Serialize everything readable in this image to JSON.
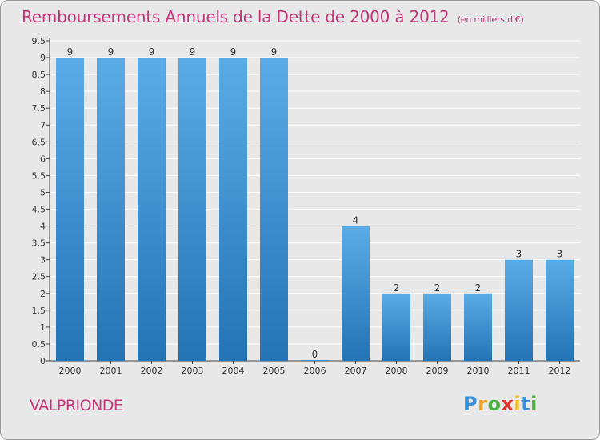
{
  "chart_data": {
    "type": "bar",
    "title": "Remboursements Annuels de la Dette de 2000 à 2012",
    "unit_label": "(en milliers d'€)",
    "categories": [
      "2000",
      "2001",
      "2002",
      "2003",
      "2004",
      "2005",
      "2006",
      "2007",
      "2008",
      "2009",
      "2010",
      "2011",
      "2012"
    ],
    "values": [
      9,
      9,
      9,
      9,
      9,
      9,
      0,
      4,
      2,
      2,
      2,
      3,
      3
    ],
    "value_labels": [
      "9",
      "9",
      "9",
      "9",
      "9",
      "9",
      "0",
      "4",
      "2",
      "2",
      "2",
      "3",
      "3"
    ],
    "y_ticks": [
      "0",
      "0.5",
      "1",
      "1.5",
      "2",
      "2.5",
      "3",
      "3.5",
      "4",
      "4.5",
      "5",
      "5.5",
      "6",
      "6.5",
      "7",
      "7.5",
      "8",
      "8.5",
      "9",
      "9.5"
    ],
    "ylim": [
      0,
      9.5
    ],
    "xlabel": "",
    "ylabel": "",
    "grid": true,
    "colors": {
      "bar_light": "#5aace6",
      "bar_dark": "#2473b5",
      "title": "#c4357a",
      "grid": "#ffffff"
    }
  },
  "commune": "VALPRIONDE",
  "logo": {
    "letters": [
      "P",
      "r",
      "o",
      "x",
      "i",
      "t",
      "i"
    ],
    "colors": [
      "#3a8fd6",
      "#f0a020",
      "#4bb043",
      "#e0302a",
      "#f0c020",
      "#3a8fd6",
      "#4bb043"
    ]
  }
}
